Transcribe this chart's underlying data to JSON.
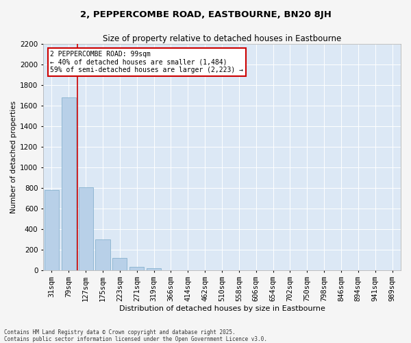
{
  "title": "2, PEPPERCOMBE ROAD, EASTBOURNE, BN20 8JH",
  "subtitle": "Size of property relative to detached houses in Eastbourne",
  "xlabel": "Distribution of detached houses by size in Eastbourne",
  "ylabel": "Number of detached properties",
  "categories": [
    "31sqm",
    "79sqm",
    "127sqm",
    "175sqm",
    "223sqm",
    "271sqm",
    "319sqm",
    "366sqm",
    "414sqm",
    "462sqm",
    "510sqm",
    "558sqm",
    "606sqm",
    "654sqm",
    "702sqm",
    "750sqm",
    "798sqm",
    "846sqm",
    "894sqm",
    "941sqm",
    "989sqm"
  ],
  "values": [
    780,
    1680,
    810,
    300,
    120,
    35,
    25,
    0,
    0,
    0,
    0,
    0,
    0,
    0,
    0,
    0,
    0,
    0,
    0,
    0,
    0
  ],
  "bar_color": "#b8d0e8",
  "bar_edgecolor": "#7aaac8",
  "marker_color": "#cc0000",
  "annotation_text": "2 PEPPERCOMBE ROAD: 99sqm\n← 40% of detached houses are smaller (1,484)\n59% of semi-detached houses are larger (2,223) →",
  "annotation_box_color": "#cc0000",
  "ylim": [
    0,
    2200
  ],
  "yticks": [
    0,
    200,
    400,
    600,
    800,
    1000,
    1200,
    1400,
    1600,
    1800,
    2000,
    2200
  ],
  "background_color": "#dce8f5",
  "grid_color": "#ffffff",
  "fig_background": "#f5f5f5",
  "footnote": "Contains HM Land Registry data © Crown copyright and database right 2025.\nContains public sector information licensed under the Open Government Licence v3.0."
}
